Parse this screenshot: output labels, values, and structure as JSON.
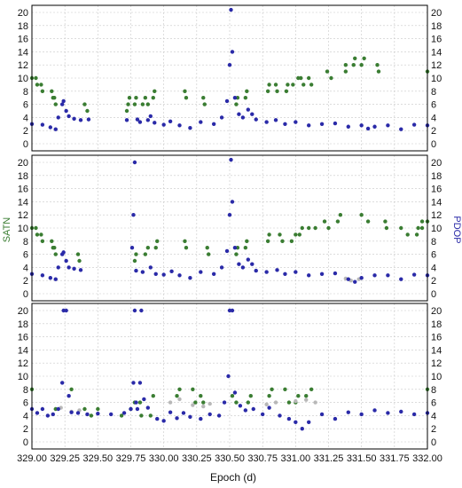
{
  "chart_data": {
    "type": "scatter",
    "xlabel": "Epoch (d)",
    "left_axis_label": "SATN",
    "right_axis_label": "PDOP",
    "xlim": [
      329.0,
      332.0
    ],
    "ylim": [
      0,
      20
    ],
    "x_ticks": [
      "329.00",
      "329.25",
      "329.50",
      "329.75",
      "330.00",
      "330.25",
      "330.50",
      "330.75",
      "331.00",
      "331.25",
      "331.50",
      "331.75",
      "332.00"
    ],
    "y_ticks": [
      "0",
      "2",
      "4",
      "6",
      "8",
      "10",
      "12",
      "14",
      "16",
      "18",
      "20"
    ],
    "grid": true,
    "colors": {
      "satn": "#3a7d32",
      "pdop": "#2a2aa8",
      "alt": "#b8b8b8"
    },
    "panels": [
      {
        "satn": [
          [
            329.0,
            10
          ],
          [
            329.03,
            10
          ],
          [
            329.04,
            9
          ],
          [
            329.07,
            9
          ],
          [
            329.08,
            8
          ],
          [
            329.15,
            8
          ],
          [
            329.16,
            7
          ],
          [
            329.17,
            7
          ],
          [
            329.18,
            6
          ],
          [
            329.4,
            6
          ],
          [
            329.42,
            5
          ],
          [
            329.72,
            5
          ],
          [
            329.73,
            6
          ],
          [
            329.78,
            6
          ],
          [
            329.74,
            7
          ],
          [
            329.79,
            7
          ],
          [
            329.84,
            6
          ],
          [
            329.88,
            6
          ],
          [
            329.86,
            7
          ],
          [
            329.92,
            7
          ],
          [
            329.93,
            8
          ],
          [
            330.16,
            8
          ],
          [
            330.17,
            7
          ],
          [
            330.3,
            7
          ],
          [
            330.31,
            6
          ],
          [
            330.55,
            6
          ],
          [
            330.56,
            7
          ],
          [
            330.62,
            7
          ],
          [
            330.63,
            8
          ],
          [
            330.79,
            8
          ],
          [
            330.8,
            9
          ],
          [
            330.85,
            9
          ],
          [
            330.86,
            8
          ],
          [
            330.93,
            8
          ],
          [
            330.94,
            9
          ],
          [
            330.98,
            9
          ],
          [
            331.02,
            10
          ],
          [
            331.04,
            10
          ],
          [
            331.06,
            9
          ],
          [
            331.12,
            9
          ],
          [
            331.1,
            10
          ],
          [
            331.27,
            10
          ],
          [
            331.24,
            11
          ],
          [
            331.38,
            11
          ],
          [
            331.38,
            12
          ],
          [
            331.44,
            12
          ],
          [
            331.45,
            13
          ],
          [
            331.52,
            13
          ],
          [
            331.5,
            12
          ],
          [
            331.62,
            12
          ],
          [
            331.63,
            11
          ],
          [
            332.0,
            11
          ]
        ],
        "pdop": [
          [
            329.0,
            3.0
          ],
          [
            329.08,
            2.9
          ],
          [
            329.14,
            2.5
          ],
          [
            329.18,
            2.2
          ],
          [
            329.2,
            4.0
          ],
          [
            329.23,
            6.0
          ],
          [
            329.24,
            6.5
          ],
          [
            329.26,
            5.0
          ],
          [
            329.28,
            4.2
          ],
          [
            329.32,
            3.8
          ],
          [
            329.37,
            3.6
          ],
          [
            329.43,
            3.7
          ],
          [
            329.72,
            3.6
          ],
          [
            329.8,
            3.7
          ],
          [
            329.82,
            3.3
          ],
          [
            329.88,
            3.6
          ],
          [
            329.9,
            4.2
          ],
          [
            329.93,
            3.2
          ],
          [
            330.0,
            2.9
          ],
          [
            330.05,
            3.4
          ],
          [
            330.12,
            2.8
          ],
          [
            330.2,
            2.4
          ],
          [
            330.28,
            3.3
          ],
          [
            330.38,
            3.0
          ],
          [
            330.44,
            4.0
          ],
          [
            330.48,
            6.5
          ],
          [
            330.5,
            12.0
          ],
          [
            330.51,
            20.5
          ],
          [
            330.52,
            14.0
          ],
          [
            330.54,
            7.0
          ],
          [
            330.57,
            4.5
          ],
          [
            330.6,
            4.0
          ],
          [
            330.64,
            5.2
          ],
          [
            330.67,
            4.5
          ],
          [
            330.7,
            3.7
          ],
          [
            330.78,
            3.3
          ],
          [
            330.85,
            3.6
          ],
          [
            330.92,
            3.0
          ],
          [
            331.0,
            3.3
          ],
          [
            331.1,
            2.8
          ],
          [
            331.2,
            3.0
          ],
          [
            331.3,
            3.1
          ],
          [
            331.4,
            2.6
          ],
          [
            331.5,
            2.8
          ],
          [
            331.55,
            2.3
          ],
          [
            331.6,
            2.6
          ],
          [
            331.7,
            2.8
          ],
          [
            331.8,
            2.2
          ],
          [
            331.9,
            2.9
          ],
          [
            332.0,
            2.8
          ]
        ],
        "pdop_alt": []
      },
      {
        "satn": [
          [
            329.0,
            10
          ],
          [
            329.03,
            10
          ],
          [
            329.04,
            9
          ],
          [
            329.07,
            9
          ],
          [
            329.08,
            8
          ],
          [
            329.15,
            8
          ],
          [
            329.16,
            7
          ],
          [
            329.17,
            7
          ],
          [
            329.18,
            6
          ],
          [
            329.35,
            6
          ],
          [
            329.36,
            5
          ],
          [
            329.78,
            5
          ],
          [
            329.79,
            6
          ],
          [
            329.86,
            6
          ],
          [
            329.88,
            7
          ],
          [
            329.94,
            7
          ],
          [
            329.95,
            8
          ],
          [
            330.16,
            8
          ],
          [
            330.17,
            7
          ],
          [
            330.33,
            7
          ],
          [
            330.34,
            6
          ],
          [
            330.55,
            6
          ],
          [
            330.56,
            7
          ],
          [
            330.62,
            7
          ],
          [
            330.63,
            8
          ],
          [
            330.79,
            8
          ],
          [
            330.8,
            9
          ],
          [
            330.88,
            9
          ],
          [
            330.9,
            8
          ],
          [
            330.97,
            8
          ],
          [
            331.0,
            9
          ],
          [
            331.03,
            9
          ],
          [
            331.05,
            10
          ],
          [
            331.1,
            10
          ],
          [
            331.15,
            10
          ],
          [
            331.25,
            10
          ],
          [
            331.22,
            11
          ],
          [
            331.32,
            11
          ],
          [
            331.34,
            12
          ],
          [
            331.5,
            12
          ],
          [
            331.55,
            11
          ],
          [
            331.68,
            11
          ],
          [
            331.69,
            10
          ],
          [
            331.8,
            10
          ],
          [
            331.85,
            9
          ],
          [
            331.92,
            9
          ],
          [
            331.93,
            10
          ],
          [
            331.96,
            10
          ],
          [
            331.96,
            11
          ],
          [
            332.0,
            11
          ]
        ],
        "pdop": [
          [
            329.0,
            3.0
          ],
          [
            329.08,
            2.8
          ],
          [
            329.14,
            2.4
          ],
          [
            329.18,
            2.2
          ],
          [
            329.2,
            4.0
          ],
          [
            329.23,
            6.0
          ],
          [
            329.24,
            6.3
          ],
          [
            329.26,
            5.0
          ],
          [
            329.28,
            4.0
          ],
          [
            329.32,
            3.8
          ],
          [
            329.37,
            3.6
          ],
          [
            329.76,
            7.0
          ],
          [
            329.77,
            12.0
          ],
          [
            329.78,
            20.0
          ],
          [
            329.79,
            3.5
          ],
          [
            329.84,
            3.3
          ],
          [
            329.9,
            4.0
          ],
          [
            329.94,
            3.0
          ],
          [
            330.0,
            2.9
          ],
          [
            330.06,
            3.4
          ],
          [
            330.12,
            2.8
          ],
          [
            330.2,
            2.4
          ],
          [
            330.28,
            3.3
          ],
          [
            330.38,
            3.0
          ],
          [
            330.44,
            4.0
          ],
          [
            330.48,
            6.5
          ],
          [
            330.5,
            12.0
          ],
          [
            330.51,
            20.5
          ],
          [
            330.52,
            14.0
          ],
          [
            330.54,
            7.0
          ],
          [
            330.57,
            4.5
          ],
          [
            330.6,
            4.0
          ],
          [
            330.64,
            5.2
          ],
          [
            330.67,
            4.5
          ],
          [
            330.7,
            3.5
          ],
          [
            330.78,
            3.3
          ],
          [
            330.86,
            3.6
          ],
          [
            330.92,
            3.0
          ],
          [
            331.0,
            3.3
          ],
          [
            331.1,
            2.8
          ],
          [
            331.2,
            3.0
          ],
          [
            331.3,
            3.1
          ],
          [
            331.4,
            2.2
          ],
          [
            331.45,
            1.8
          ],
          [
            331.5,
            2.4
          ],
          [
            331.6,
            2.8
          ],
          [
            331.7,
            2.8
          ],
          [
            331.8,
            2.2
          ],
          [
            331.9,
            2.9
          ],
          [
            332.0,
            2.8
          ]
        ],
        "pdop_alt": [
          [
            331.38,
            2.3
          ],
          [
            331.42,
            2.0
          ],
          [
            331.48,
            2.2
          ]
        ]
      },
      {
        "satn": [
          [
            329.0,
            8
          ],
          [
            329.3,
            8
          ],
          [
            329.18,
            5
          ],
          [
            329.4,
            5
          ],
          [
            329.45,
            4
          ],
          [
            329.68,
            4
          ],
          [
            329.5,
            5
          ],
          [
            329.75,
            5
          ],
          [
            329.78,
            6
          ],
          [
            329.82,
            6
          ],
          [
            329.83,
            4
          ],
          [
            329.9,
            4
          ],
          [
            329.92,
            7
          ],
          [
            330.1,
            7
          ],
          [
            330.12,
            8
          ],
          [
            330.22,
            8
          ],
          [
            330.24,
            6
          ],
          [
            330.3,
            6
          ],
          [
            330.28,
            7
          ],
          [
            330.52,
            7
          ],
          [
            330.55,
            6
          ],
          [
            330.64,
            6
          ],
          [
            330.66,
            7
          ],
          [
            330.8,
            7
          ],
          [
            330.82,
            8
          ],
          [
            330.92,
            8
          ],
          [
            330.95,
            6
          ],
          [
            331.0,
            6
          ],
          [
            331.02,
            7
          ],
          [
            331.08,
            7
          ],
          [
            331.12,
            8
          ],
          [
            332.0,
            8
          ]
        ],
        "pdop": [
          [
            329.0,
            5.0
          ],
          [
            329.04,
            4.4
          ],
          [
            329.08,
            5.0
          ],
          [
            329.12,
            4.0
          ],
          [
            329.16,
            4.2
          ],
          [
            329.2,
            5.0
          ],
          [
            329.23,
            9.0
          ],
          [
            329.24,
            20.0
          ],
          [
            329.26,
            20.0
          ],
          [
            329.28,
            7.0
          ],
          [
            329.3,
            4.5
          ],
          [
            329.35,
            4.4
          ],
          [
            329.42,
            4.2
          ],
          [
            329.5,
            4.3
          ],
          [
            329.6,
            4.2
          ],
          [
            329.7,
            4.4
          ],
          [
            329.75,
            5.0
          ],
          [
            329.77,
            9.0
          ],
          [
            329.78,
            20.0
          ],
          [
            329.79,
            6.0
          ],
          [
            329.8,
            5.0
          ],
          [
            329.82,
            9.0
          ],
          [
            329.83,
            20.0
          ],
          [
            329.85,
            6.5
          ],
          [
            329.88,
            5.2
          ],
          [
            329.95,
            3.5
          ],
          [
            330.0,
            3.2
          ],
          [
            330.05,
            4.5
          ],
          [
            330.1,
            3.6
          ],
          [
            330.15,
            4.4
          ],
          [
            330.2,
            3.8
          ],
          [
            330.28,
            3.5
          ],
          [
            330.35,
            4.2
          ],
          [
            330.42,
            4.0
          ],
          [
            330.46,
            6.0
          ],
          [
            330.49,
            10.0
          ],
          [
            330.5,
            20.0
          ],
          [
            330.52,
            20.0
          ],
          [
            330.54,
            7.5
          ],
          [
            330.58,
            5.5
          ],
          [
            330.62,
            4.8
          ],
          [
            330.68,
            5.0
          ],
          [
            330.75,
            4.2
          ],
          [
            330.8,
            5.2
          ],
          [
            330.88,
            4.0
          ],
          [
            330.95,
            3.5
          ],
          [
            331.0,
            3.0
          ],
          [
            331.05,
            2.0
          ],
          [
            331.1,
            3.0
          ],
          [
            331.2,
            4.2
          ],
          [
            331.3,
            3.5
          ],
          [
            331.4,
            4.5
          ],
          [
            331.5,
            4.2
          ],
          [
            331.6,
            4.8
          ],
          [
            331.7,
            4.4
          ],
          [
            331.8,
            4.6
          ],
          [
            331.9,
            4.2
          ],
          [
            332.0,
            4.4
          ]
        ],
        "pdop_alt": [
          [
            329.22,
            5.2
          ],
          [
            329.3,
            4.6
          ],
          [
            329.36,
            4.8
          ],
          [
            330.05,
            6.0
          ],
          [
            330.12,
            6.5
          ],
          [
            330.22,
            5.6
          ],
          [
            330.3,
            5.4
          ],
          [
            330.35,
            5.8
          ],
          [
            330.78,
            5.7
          ],
          [
            330.85,
            6.0
          ],
          [
            331.0,
            6.2
          ],
          [
            331.08,
            6.4
          ],
          [
            331.15,
            6.0
          ]
        ]
      }
    ]
  }
}
